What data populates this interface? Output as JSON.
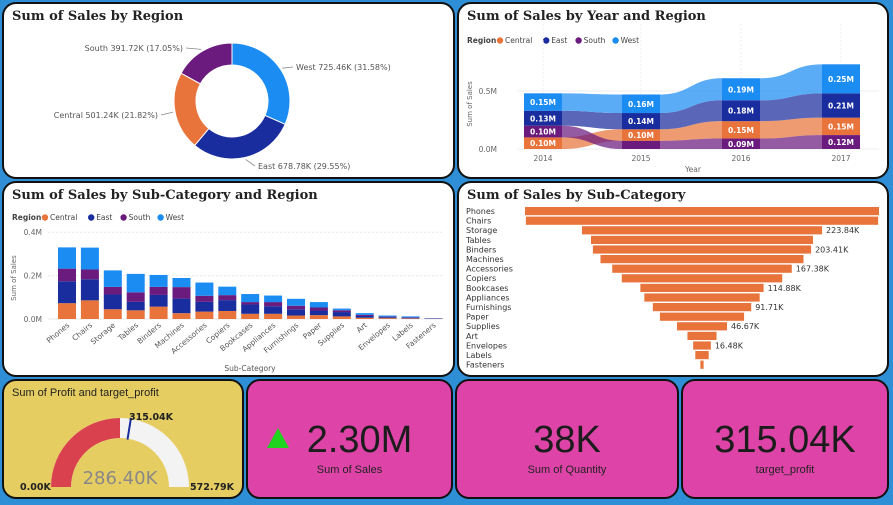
{
  "colors": {
    "Central": "#e8743b",
    "East": "#1a2d9e",
    "South": "#6b1a7e",
    "West": "#1a8cf2",
    "bg": "#2f8fd6",
    "kpi": "#de44a8",
    "gauge_tile": "#e6cd62",
    "gauge_fill": "#d9414e",
    "arrow": "#1fd31f"
  },
  "donut": {
    "title": "Sum of Sales by Region",
    "labels": [
      "West 725.46K (31.58%)",
      "East 678.78K (29.55%)",
      "Central 501.24K (21.82%)",
      "South 391.72K (17.05%)"
    ]
  },
  "ribbon": {
    "title": "Sum of Sales by Year and Region",
    "legend_title": "Region",
    "xlabel": "Year",
    "ylabel": "Sum of Sales",
    "y_ticks": [
      "0.0M",
      "0.5M"
    ]
  },
  "stacked": {
    "title": "Sum of Sales by Sub-Category and Region",
    "legend_title": "Region",
    "xlabel": "Sub-Category",
    "ylabel": "Sum of Sales",
    "y_ticks": [
      "0.0M",
      "0.2M",
      "0.4M"
    ]
  },
  "funnel": {
    "title": "Sum of Sales by Sub-Category"
  },
  "gauge": {
    "title": "Sum of Profit and target_profit",
    "value_label": "286.40K",
    "min_label": "0.00K",
    "max_label": "572.79K",
    "target_label": "315.04K"
  },
  "kpis": [
    {
      "value": "2.30M",
      "label": "Sum of Sales"
    },
    {
      "value": "38K",
      "label": "Sum of Quantity"
    },
    {
      "value": "315.04K",
      "label": "target_profit"
    }
  ],
  "chart_data": [
    {
      "type": "pie",
      "title": "Sum of Sales by Region",
      "categories": [
        "West",
        "East",
        "Central",
        "South"
      ],
      "values": [
        725.46,
        678.78,
        501.24,
        391.72
      ],
      "percent": [
        31.58,
        29.55,
        21.82,
        17.05
      ],
      "unit": "K"
    },
    {
      "type": "area",
      "title": "Sum of Sales by Year and Region",
      "x": [
        "2014",
        "2015",
        "2016",
        "2017"
      ],
      "xlabel": "Year",
      "ylabel": "Sum of Sales",
      "series": [
        {
          "name": "Central",
          "values": [
            0.1,
            0.1,
            0.15,
            0.15
          ],
          "labels": [
            "0.10M",
            "0.10M",
            "0.15M",
            "0.15M"
          ]
        },
        {
          "name": "East",
          "values": [
            0.13,
            0.14,
            0.18,
            0.21
          ],
          "labels": [
            "0.13M",
            "0.14M",
            "0.18M",
            "0.21M"
          ]
        },
        {
          "name": "South",
          "values": [
            0.1,
            0.07,
            0.09,
            0.12
          ],
          "labels": [
            "0.10M",
            "",
            "0.09M",
            "0.12M"
          ]
        },
        {
          "name": "West",
          "values": [
            0.15,
            0.16,
            0.19,
            0.25
          ],
          "labels": [
            "0.15M",
            "0.16M",
            "0.19M",
            "0.25M"
          ]
        }
      ],
      "y_ticks": [
        "0.0M",
        "0.5M"
      ],
      "legend": "top-left"
    },
    {
      "type": "bar",
      "stacked": true,
      "title": "Sum of Sales by Sub-Category and Region",
      "categories": [
        "Phones",
        "Chairs",
        "Storage",
        "Tables",
        "Binders",
        "Machines",
        "Accessories",
        "Copiers",
        "Bookcases",
        "Appliances",
        "Furnishings",
        "Paper",
        "Supplies",
        "Art",
        "Envelopes",
        "Labels",
        "Fasteners"
      ],
      "xlabel": "Sub-Category",
      "ylabel": "Sum of Sales",
      "ylim": [
        0,
        0.45
      ],
      "series": [
        {
          "name": "Central",
          "values": [
            0.073,
            0.086,
            0.045,
            0.04,
            0.057,
            0.027,
            0.034,
            0.037,
            0.024,
            0.024,
            0.016,
            0.018,
            0.012,
            0.006,
            0.004,
            0.003,
            0.001
          ]
        },
        {
          "name": "East",
          "values": [
            0.101,
            0.097,
            0.068,
            0.039,
            0.054,
            0.067,
            0.045,
            0.05,
            0.043,
            0.035,
            0.029,
            0.021,
            0.02,
            0.008,
            0.004,
            0.002,
            0.001
          ]
        },
        {
          "name": "South",
          "values": [
            0.058,
            0.045,
            0.035,
            0.044,
            0.037,
            0.053,
            0.028,
            0.023,
            0.011,
            0.019,
            0.016,
            0.014,
            0.008,
            0.005,
            0.003,
            0.002,
            0.001
          ]
        },
        {
          "name": "West",
          "values": [
            0.098,
            0.101,
            0.076,
            0.085,
            0.055,
            0.042,
            0.061,
            0.039,
            0.037,
            0.03,
            0.032,
            0.025,
            0.008,
            0.008,
            0.005,
            0.005,
            0.001
          ]
        }
      ],
      "y_ticks": [
        "0.0M",
        "0.2M",
        "0.4M"
      ],
      "legend": "top-left"
    },
    {
      "type": "bar",
      "orientation": "funnel",
      "title": "Sum of Sales by Sub-Category",
      "categories": [
        "Phones",
        "Chairs",
        "Storage",
        "Tables",
        "Binders",
        "Machines",
        "Accessories",
        "Copiers",
        "Bookcases",
        "Appliances",
        "Furnishings",
        "Paper",
        "Supplies",
        "Art",
        "Envelopes",
        "Labels",
        "Fasteners"
      ],
      "values": [
        330.0,
        328.4,
        223.84,
        206.97,
        203.41,
        189.24,
        167.38,
        149.53,
        114.88,
        107.53,
        91.71,
        78.48,
        46.67,
        27.12,
        16.48,
        12.49,
        3.02
      ],
      "data_labels": [
        "",
        "",
        "223.84K",
        "",
        "203.41K",
        "",
        "167.38K",
        "",
        "114.88K",
        "",
        "91.71K",
        "",
        "46.67K",
        "",
        "16.48K",
        "",
        ""
      ]
    },
    {
      "type": "gauge",
      "title": "Sum of Profit and target_profit",
      "value": 286.4,
      "min": 0,
      "max": 572.79,
      "target": 315.04,
      "unit": "K"
    }
  ]
}
